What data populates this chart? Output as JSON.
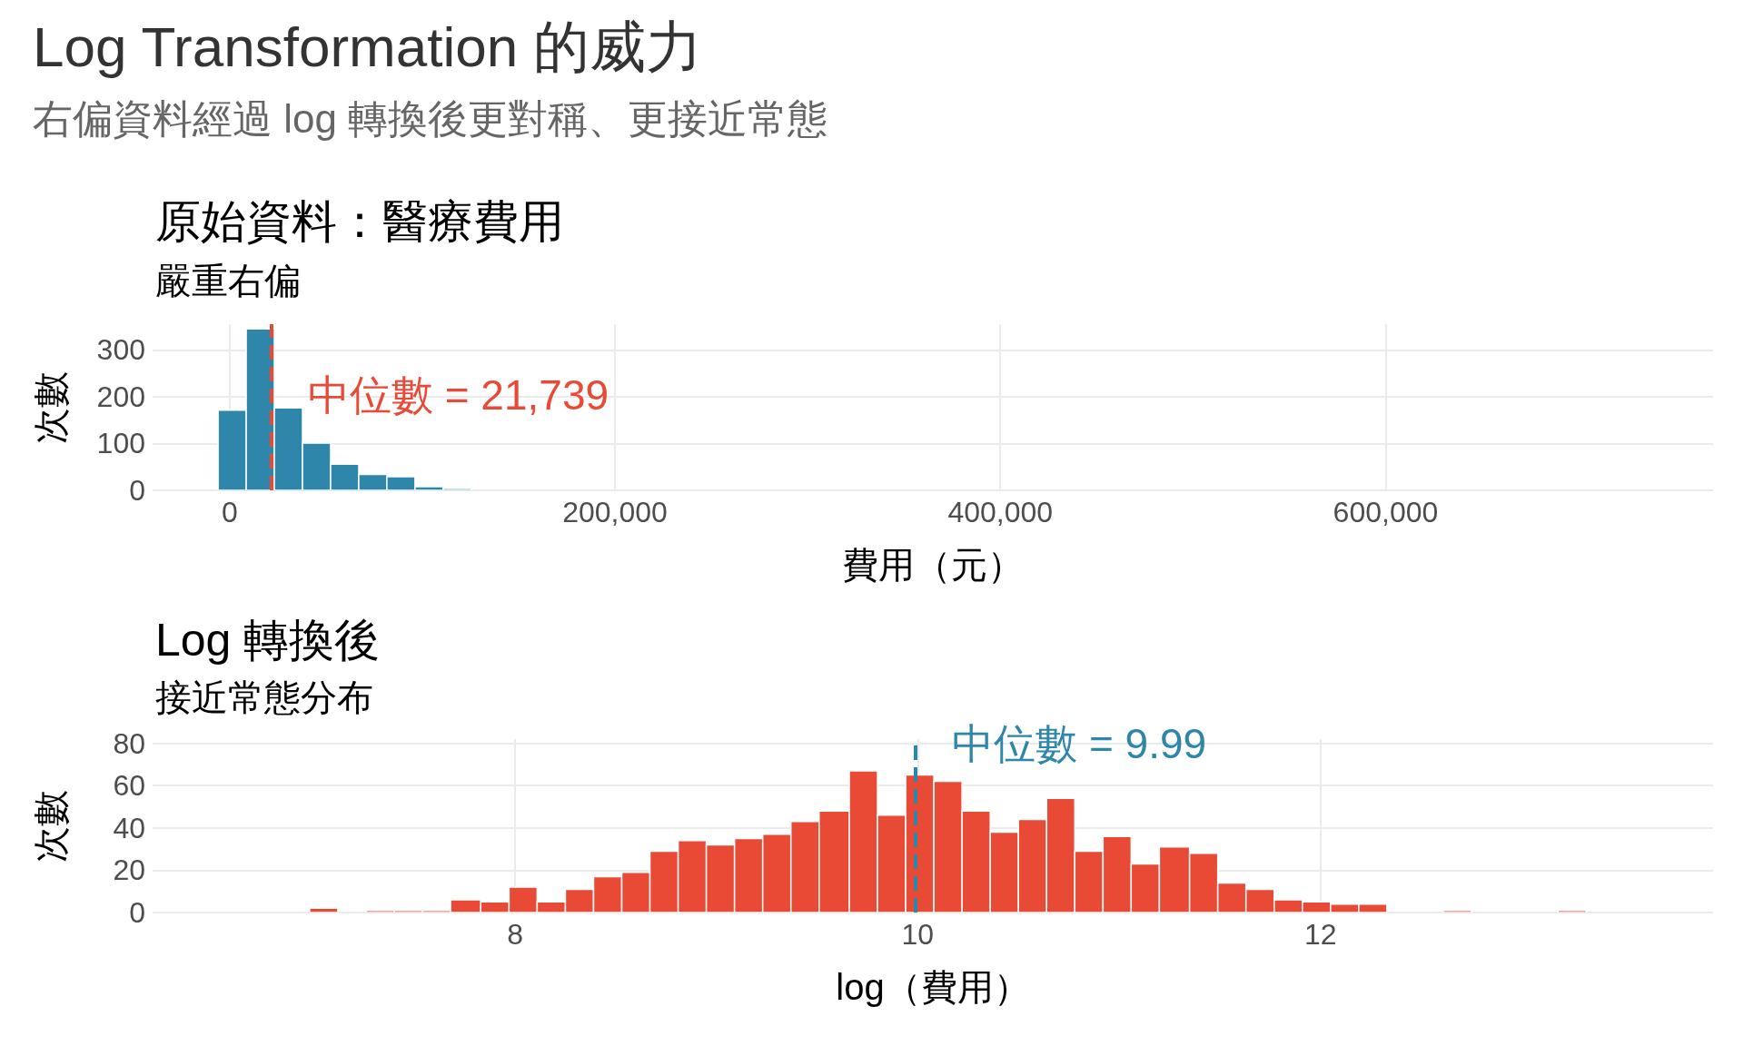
{
  "chart_data": [
    {
      "type": "other",
      "title": "Log Transformation 的威力",
      "subtitle": "右偏資料經過 log 轉換後更對稱、更接近常態"
    },
    {
      "type": "histogram",
      "title": "原始資料：醫療費用",
      "subtitle": "嚴重右偏",
      "xlabel": "費用（元）",
      "ylabel": "次數",
      "color": "#2e86ab",
      "bins": [
        -6000,
        8600,
        23200,
        37800,
        52400,
        67000,
        81600,
        96200,
        110800,
        125400
      ],
      "values": [
        171,
        345,
        176,
        101,
        56,
        34,
        29,
        8,
        4
      ],
      "xlim": [
        -40000,
        770000
      ],
      "xticks": [
        0,
        {
          "value": 200000,
          "label": "200,000"
        },
        {
          "value": 400000,
          "label": "400,000"
        },
        {
          "value": 600000,
          "label": "600,000"
        }
      ],
      "ylim": [
        0,
        355
      ],
      "yticks": [
        0,
        100,
        200,
        300
      ],
      "grid": true,
      "ref_lines": [
        {
          "axis": "x",
          "value": 21739,
          "label": "中位數 = 21,739",
          "color": "#e84a36",
          "line_style": "dashed"
        }
      ]
    },
    {
      "type": "histogram",
      "title": "Log 轉換後",
      "subtitle": "接近常態分布",
      "xlabel": "log（費用）",
      "ylabel": "次數",
      "color": "#e84a36",
      "bins": [
        6.98,
        7.12,
        7.26,
        7.4,
        7.54,
        7.68,
        7.83,
        7.97,
        8.11,
        8.25,
        8.39,
        8.53,
        8.67,
        8.81,
        8.95,
        9.09,
        9.23,
        9.37,
        9.51,
        9.66,
        9.8,
        9.94,
        10.08,
        10.22,
        10.36,
        10.5,
        10.64,
        10.78,
        10.92,
        11.06,
        11.2,
        11.35,
        11.49,
        11.63,
        11.77,
        11.91,
        12.05,
        12.19,
        12.33,
        12.61,
        12.75,
        13.18,
        13.32
      ],
      "values": [
        2,
        0,
        1,
        1,
        1,
        6,
        5,
        12,
        5,
        11,
        17,
        19,
        29,
        34,
        32,
        35,
        37,
        43,
        48,
        67,
        46,
        65,
        62,
        48,
        38,
        44,
        54,
        29,
        36,
        23,
        31,
        28,
        14,
        11,
        6,
        5,
        4,
        4,
        0,
        1,
        0,
        1
      ],
      "xlim": [
        6.2,
        13.95
      ],
      "xticks": [
        8,
        10,
        12
      ],
      "ylim": [
        0,
        82
      ],
      "yticks": [
        0,
        20,
        40,
        60,
        80
      ],
      "grid": true,
      "ref_lines": [
        {
          "axis": "x",
          "value": 9.99,
          "label": "中位數 = 9.99",
          "color": "#2e86ab",
          "line_style": "dashed"
        }
      ]
    }
  ]
}
